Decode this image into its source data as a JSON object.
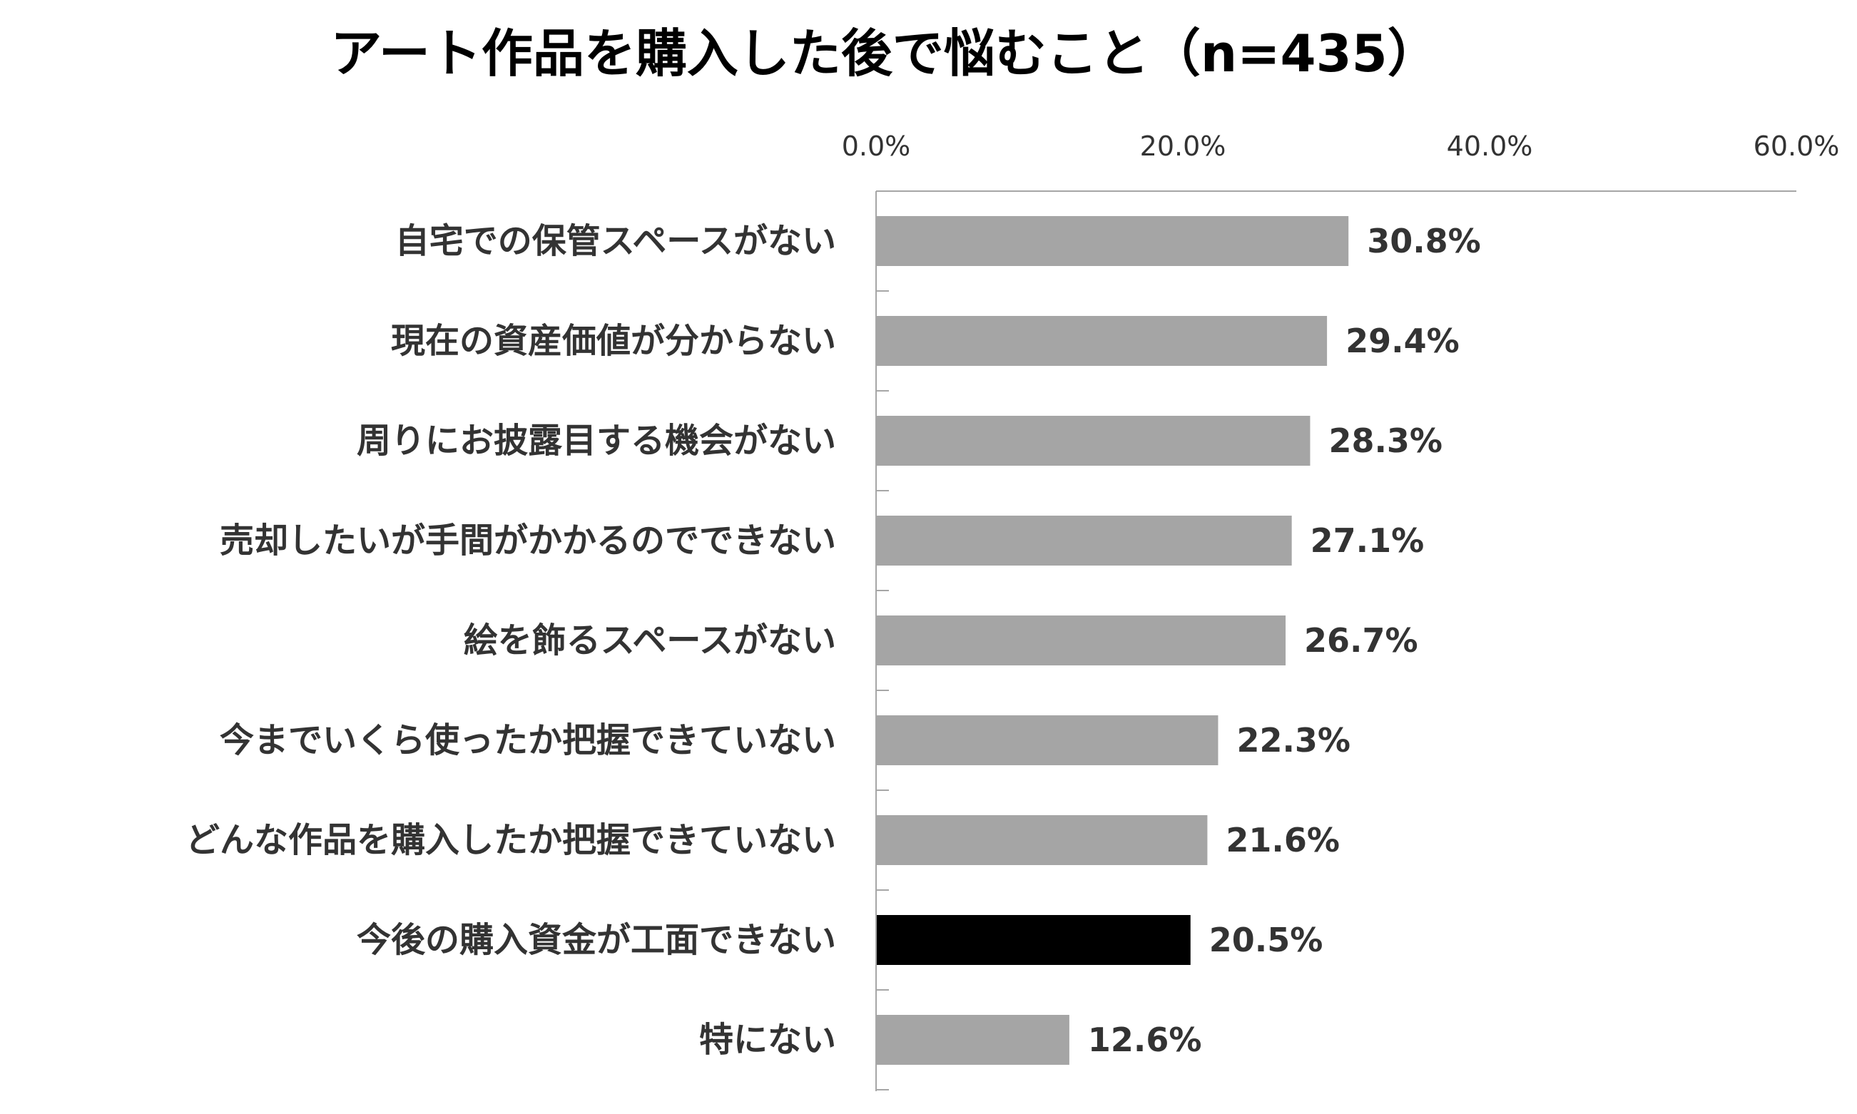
{
  "chart_data": {
    "type": "bar",
    "orientation": "horizontal",
    "title": "アート作品を購入した後で悩むこと（n=435）",
    "categories": [
      "自宅での保管スペースがない",
      "現在の資産価値が分からない",
      "周りにお披露目する機会がない",
      "売却したいが手間がかかるのでできない",
      "絵を飾るスペースがない",
      "今までいくら使ったか把握できていない",
      "どんな作品を購入したか把握できていない",
      "今後の購入資金が工面できない",
      "特にない"
    ],
    "values": [
      30.8,
      29.4,
      28.3,
      27.1,
      26.7,
      22.3,
      21.6,
      20.5,
      12.6
    ],
    "data_labels": [
      "30.8%",
      "29.4%",
      "28.3%",
      "27.1%",
      "26.7%",
      "22.3%",
      "21.6%",
      "20.5%",
      "12.6%"
    ],
    "xticks": [
      0,
      20,
      40,
      60
    ],
    "xtick_labels": [
      "0.0%",
      "20.0%",
      "40.0%",
      "60.0%"
    ],
    "xlim": [
      0,
      60
    ],
    "axis_position": "top",
    "grid": false,
    "legend": "none",
    "highlight_index": 7,
    "colors": {
      "bar": "#a5a5a5",
      "highlight": "#000000",
      "axis": "#a6a6a6",
      "text": "#333333",
      "title": "#000000"
    }
  }
}
